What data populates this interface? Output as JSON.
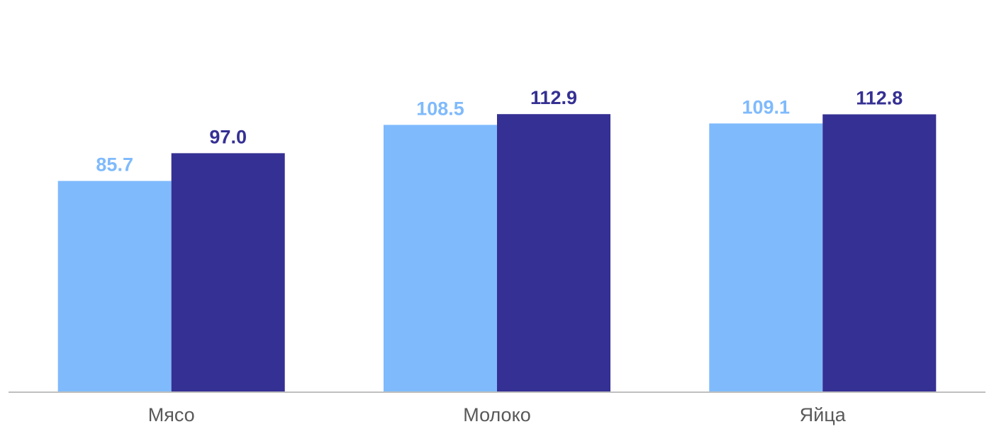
{
  "chart_data": {
    "type": "bar",
    "categories": [
      "Мясо",
      "Молоко",
      "Яйца"
    ],
    "series": [
      {
        "values": [
          85.7,
          108.5,
          109.1
        ],
        "color": "#7fbafc"
      },
      {
        "values": [
          97.0,
          112.9,
          112.8
        ],
        "color": "#353093"
      }
    ],
    "value_label_format": "0.0",
    "axis_color": "#bfbfbf",
    "grid": false,
    "y_axis_visible": false
  }
}
